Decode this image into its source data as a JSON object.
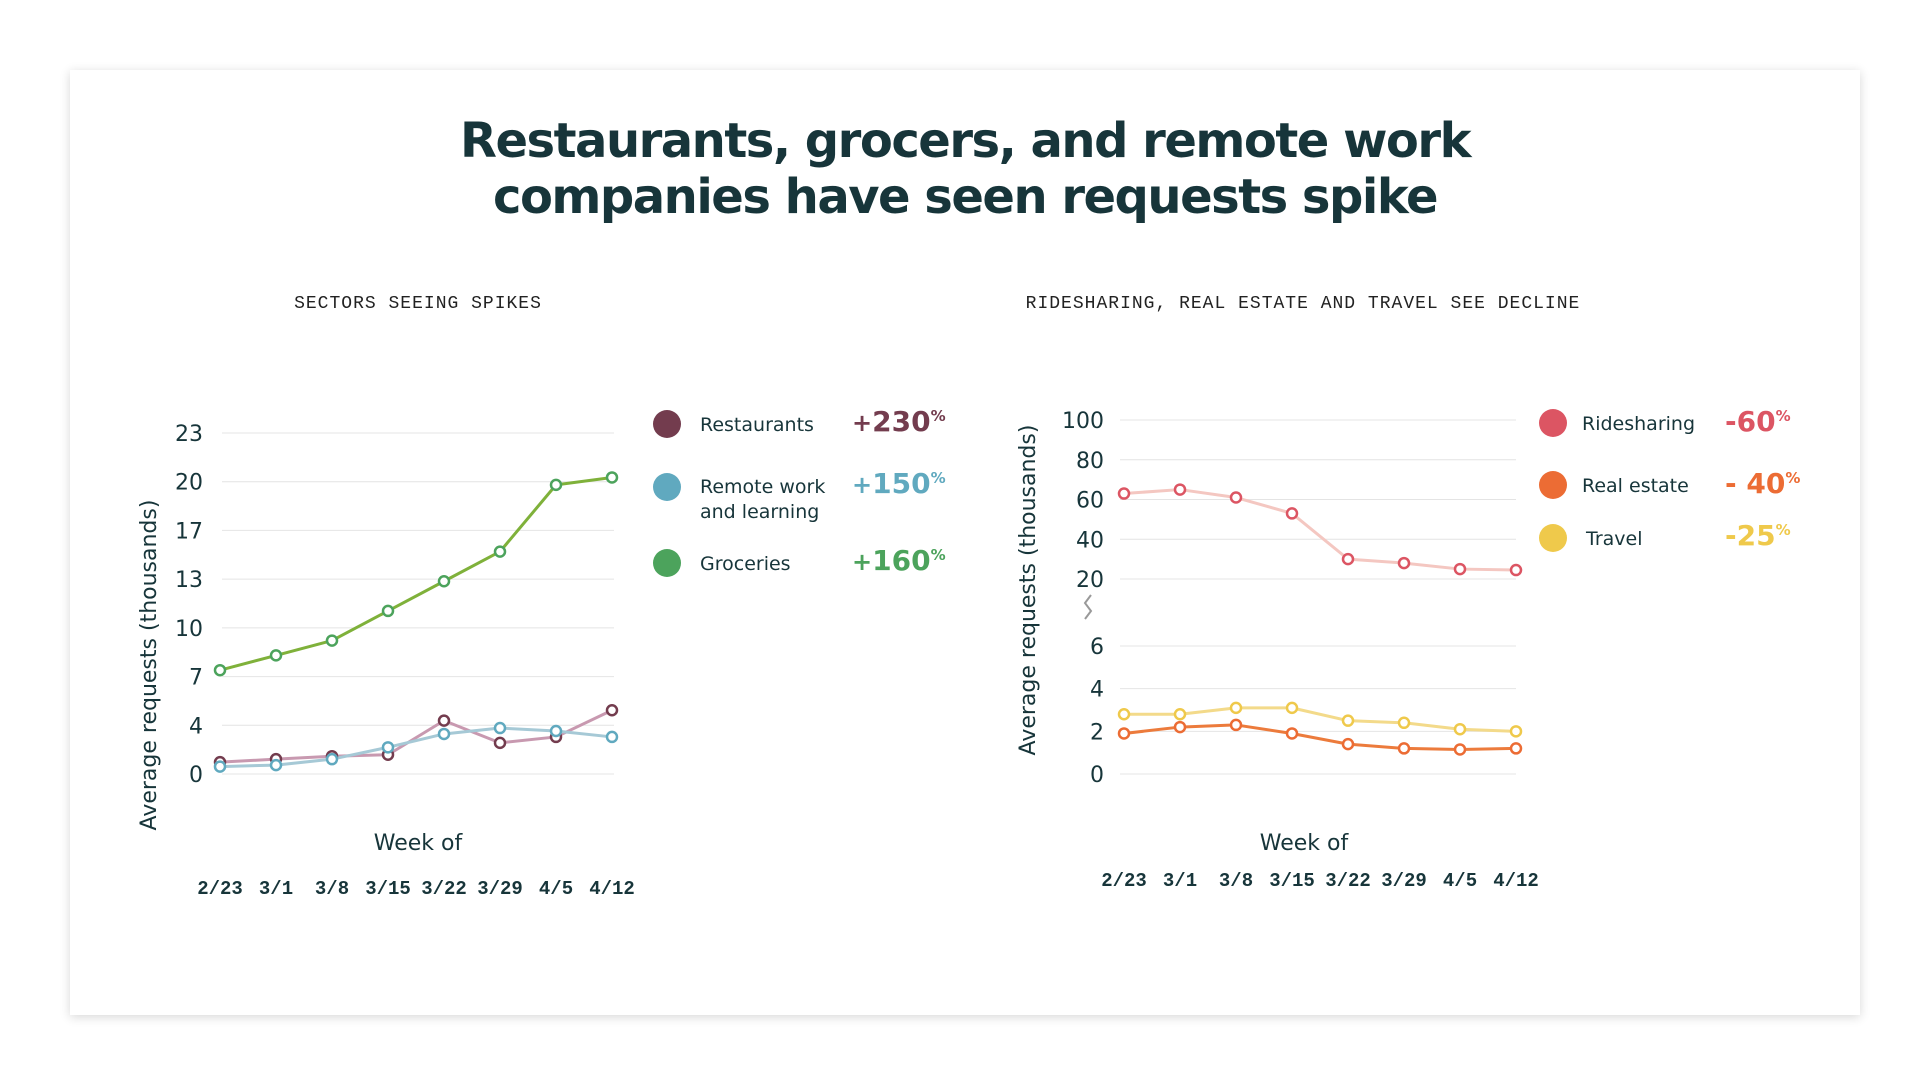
{
  "title_line1": "Restaurants, grocers, and remote work",
  "title_line2": "companies have seen requests spike",
  "chart_data": [
    {
      "type": "line",
      "title": "SECTORS SEEING SPIKES",
      "xlabel": "Week of",
      "ylabel": "Average requests (thousands)",
      "x": [
        "2/23",
        "3/1",
        "3/8",
        "3/15",
        "3/22",
        "3/29",
        "4/5",
        "4/12"
      ],
      "yticks": [
        "23",
        "20",
        "17",
        "13",
        "10",
        "7",
        "4",
        "0"
      ],
      "ylim": [
        0,
        23
      ],
      "grid": true,
      "legend_position": "right",
      "series": [
        {
          "name": "Restaurants",
          "change_sign": "+",
          "change_value": "230",
          "change_unit": "%",
          "color": "#733c4e",
          "line_color": "#c899b0",
          "values": [
            0.8,
            1.0,
            1.2,
            1.3,
            3.6,
            2.1,
            2.5,
            4.3
          ]
        },
        {
          "name": "Remote work",
          "name_line2": "and learning",
          "change_sign": "+",
          "change_value": "150",
          "change_unit": "%",
          "color": "#60a9bf",
          "line_color": "#a6c9d6",
          "values": [
            0.5,
            0.6,
            1.0,
            1.8,
            2.7,
            3.1,
            2.9,
            2.5
          ]
        },
        {
          "name": "Groceries",
          "change_sign": "+",
          "change_value": "160",
          "change_unit": "%",
          "color": "#4ca35c",
          "line_color": "#7fb13a",
          "values": [
            7.0,
            8.0,
            9.0,
            11.0,
            13.0,
            15.0,
            19.5,
            20.0
          ]
        }
      ]
    },
    {
      "type": "line",
      "title": "RIDESHARING, REAL ESTATE AND TRAVEL SEE DECLINE",
      "xlabel": "Week of",
      "ylabel": "Average requests (thousands)",
      "x": [
        "2/23",
        "3/1",
        "3/8",
        "3/15",
        "3/22",
        "3/29",
        "4/5",
        "4/12"
      ],
      "yticks_upper": [
        "100",
        "80",
        "60",
        "40",
        "20"
      ],
      "yticks_lower": [
        "6",
        "4",
        "2",
        "0"
      ],
      "ylim_upper": [
        20,
        100
      ],
      "ylim_lower": [
        0,
        6
      ],
      "axis_break": true,
      "grid": true,
      "legend_position": "right",
      "series": [
        {
          "name": "Ridesharing",
          "change_value": "-60",
          "change_unit": "%",
          "color": "#dc5563",
          "line_color": "#f4c7c1",
          "axis": "upper",
          "values": [
            63,
            65,
            61,
            53,
            30,
            28,
            25,
            24.5
          ]
        },
        {
          "name": "Real estate",
          "change_value": "- 40",
          "change_unit": "%",
          "color": "#ec6c34",
          "line_color": "#ec7b3c",
          "axis": "lower",
          "values": [
            1.9,
            2.2,
            2.3,
            1.9,
            1.4,
            1.2,
            1.15,
            1.2
          ]
        },
        {
          "name": "Travel",
          "change_value": "-25",
          "change_unit": "%",
          "color": "#efc94b",
          "line_color": "#f3da8a",
          "axis": "lower",
          "values": [
            2.8,
            2.8,
            3.1,
            3.1,
            2.5,
            2.4,
            2.1,
            2.0
          ]
        }
      ]
    }
  ]
}
